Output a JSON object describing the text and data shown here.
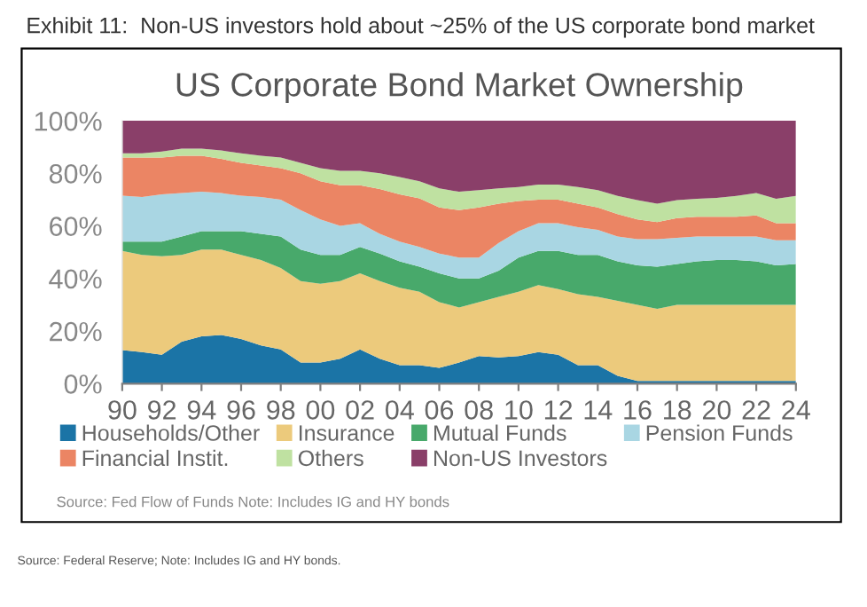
{
  "chart_data": {
    "type": "area",
    "stacked": true,
    "title": "US Corporate Bond Market Ownership",
    "subtitle": "Exhibit 11:  Non-US investors hold about ~25% of the US corporate bond market",
    "x": [
      1990,
      1991,
      1992,
      1993,
      1994,
      1995,
      1996,
      1997,
      1998,
      1999,
      2000,
      2001,
      2002,
      2003,
      2004,
      2005,
      2006,
      2007,
      2008,
      2009,
      2010,
      2011,
      2012,
      2013,
      2014,
      2015,
      2016,
      2017,
      2018,
      2019,
      2020,
      2021,
      2022,
      2023,
      2024
    ],
    "series": [
      {
        "name": "Households/Other",
        "color": "#1b74a6",
        "values": [
          12.8,
          12,
          11,
          16,
          18,
          18.5,
          17,
          14.5,
          13,
          8,
          8,
          9.5,
          13,
          9.5,
          7,
          7,
          6,
          8,
          10.5,
          10,
          10.5,
          12,
          11,
          7,
          7,
          3,
          1,
          1,
          1,
          1,
          1,
          1,
          1,
          1,
          1
        ]
      },
      {
        "name": "Insurance",
        "color": "#ecca7c",
        "values": [
          37.7,
          37,
          37.5,
          33,
          33,
          32.5,
          32,
          32.5,
          31,
          31,
          30,
          29.5,
          29,
          29.5,
          29.5,
          28,
          25,
          21,
          20.5,
          23,
          24.5,
          25.5,
          25,
          27,
          26,
          28.5,
          29,
          27.5,
          29,
          29,
          29,
          29,
          29,
          29,
          29
        ]
      },
      {
        "name": "Mutual Funds",
        "color": "#48a96b",
        "values": [
          3.5,
          5,
          5.5,
          7,
          7,
          7,
          9,
          10,
          12,
          12,
          11,
          10,
          10,
          10.5,
          10,
          9.5,
          11,
          11,
          9,
          10,
          13,
          13,
          14.5,
          15,
          16,
          15,
          15,
          16,
          15.5,
          16.5,
          17,
          17,
          16.5,
          15,
          15.5
        ]
      },
      {
        "name": "Pension Funds",
        "color": "#a9d6e3",
        "values": [
          17.5,
          17,
          18,
          16.5,
          15,
          14.5,
          13.5,
          14,
          14,
          15,
          13.5,
          11,
          9,
          7.5,
          7.5,
          7.5,
          7.5,
          8,
          8,
          10.5,
          10,
          10.5,
          10.5,
          10.5,
          9.5,
          9.5,
          10,
          10.5,
          10,
          9.5,
          9,
          9,
          9.5,
          9.5,
          9
        ]
      },
      {
        "name": "Financial Instit.",
        "color": "#eb8564",
        "values": [
          14.5,
          15,
          14,
          14.2,
          13.7,
          13,
          12.5,
          12,
          12,
          14,
          14.5,
          15.5,
          14.5,
          17,
          18,
          18.5,
          17.5,
          18,
          19,
          15,
          11.5,
          9,
          9,
          9,
          8.5,
          8.5,
          7.5,
          6.5,
          7.5,
          7.5,
          7.5,
          7.5,
          8,
          6.5,
          6.5
        ]
      },
      {
        "name": "Others",
        "color": "#bfe1a1",
        "values": [
          1.6,
          1.6,
          2.3,
          2.7,
          2.7,
          3.2,
          3.6,
          3.7,
          4,
          4,
          5,
          5.5,
          5.5,
          6,
          6.6,
          6.5,
          7.3,
          7,
          6.6,
          5.8,
          5.3,
          5.7,
          5.7,
          6.3,
          6.6,
          6.9,
          7.3,
          7,
          6.8,
          6.8,
          7.2,
          7.9,
          8.5,
          9.3,
          10.4
        ]
      },
      {
        "name": "Non-US Investors",
        "color": "#8a3f69",
        "values": [
          12.4,
          12.4,
          11.7,
          10.6,
          10.6,
          11.3,
          12.4,
          13.3,
          14,
          16,
          18,
          19,
          19,
          20,
          21.4,
          23,
          25.7,
          27,
          26.4,
          25.7,
          25.2,
          24.3,
          24.3,
          25.2,
          26.4,
          28.6,
          30.2,
          31.5,
          30.2,
          29.7,
          29.3,
          28.6,
          27.5,
          29.7,
          28.6
        ]
      }
    ],
    "xlim": [
      1990,
      2024
    ],
    "xticks": [
      {
        "value": 1990,
        "label": "90"
      },
      {
        "value": 1992,
        "label": "92"
      },
      {
        "value": 1994,
        "label": "94"
      },
      {
        "value": 1996,
        "label": "96"
      },
      {
        "value": 1998,
        "label": "98"
      },
      {
        "value": 2000,
        "label": "00"
      },
      {
        "value": 2002,
        "label": "02"
      },
      {
        "value": 2004,
        "label": "04"
      },
      {
        "value": 2006,
        "label": "06"
      },
      {
        "value": 2008,
        "label": "08"
      },
      {
        "value": 2010,
        "label": "10"
      },
      {
        "value": 2012,
        "label": "12"
      },
      {
        "value": 2014,
        "label": "14"
      },
      {
        "value": 2016,
        "label": "16"
      },
      {
        "value": 2018,
        "label": "18"
      },
      {
        "value": 2020,
        "label": "20"
      },
      {
        "value": 2022,
        "label": "22"
      },
      {
        "value": 2024,
        "label": "24"
      }
    ],
    "ylim": [
      0,
      100
    ],
    "yticks": [
      {
        "value": 0,
        "label": "0%"
      },
      {
        "value": 20,
        "label": "20%"
      },
      {
        "value": 40,
        "label": "40%"
      },
      {
        "value": 60,
        "label": "60%"
      },
      {
        "value": 80,
        "label": "80%"
      },
      {
        "value": 100,
        "label": "100%"
      }
    ],
    "legend": "bottom",
    "grid": false,
    "annotations": [
      "Source: Fed Flow of Funds Note: Includes IG and HY bonds",
      "Source: Federal Reserve; Note: Includes IG and HY bonds."
    ]
  }
}
